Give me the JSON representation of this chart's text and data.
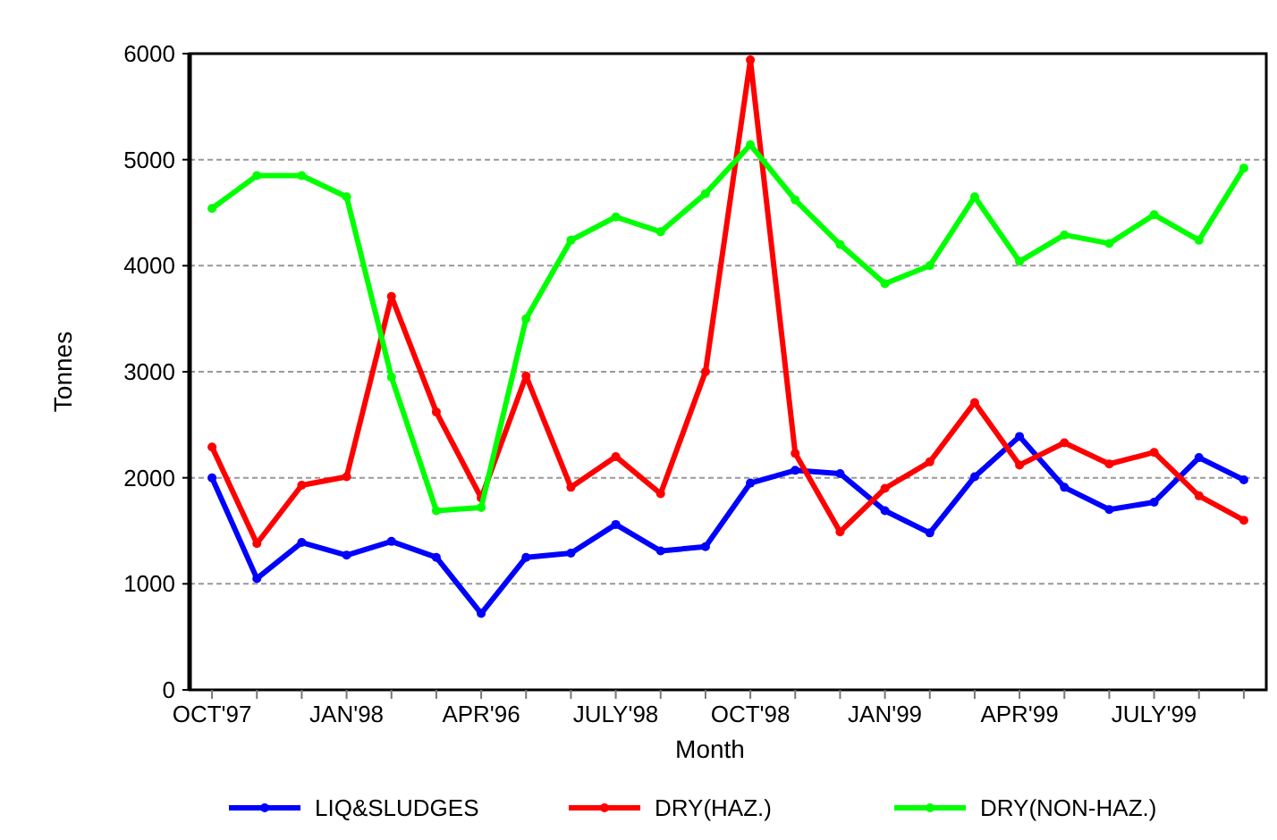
{
  "chart_data": {
    "type": "line",
    "xlabel": "Month",
    "ylabel": "Tonnes",
    "categories": [
      "OCT'97",
      null,
      null,
      "JAN'98",
      null,
      null,
      "APR'96",
      null,
      null,
      "JULY'98",
      null,
      null,
      "OCT'98",
      null,
      null,
      "JAN'99",
      null,
      null,
      "APR'99",
      null,
      null,
      "JULY'99",
      null,
      null
    ],
    "series": [
      {
        "name": "LIQ&SLUDGES",
        "color": "#0000ff",
        "values": [
          2000,
          1050,
          1390,
          1270,
          1400,
          1250,
          720,
          1250,
          1290,
          1560,
          1310,
          1350,
          1950,
          2070,
          2040,
          1690,
          1480,
          2010,
          2390,
          1910,
          1700,
          1770,
          2190,
          1980
        ]
      },
      {
        "name": "DRY(HAZ.)",
        "color": "#ff0000",
        "values": [
          2290,
          1380,
          1930,
          2010,
          3710,
          2620,
          1810,
          2960,
          1910,
          2200,
          1850,
          3000,
          5940,
          2230,
          1490,
          1900,
          2150,
          2710,
          2120,
          2330,
          2130,
          2240,
          1830,
          1600
        ]
      },
      {
        "name": "DRY(NON-HAZ.)",
        "color": "#00ff00",
        "values": [
          4540,
          4850,
          4850,
          4650,
          2950,
          1690,
          1720,
          3500,
          4240,
          4460,
          4320,
          4680,
          5140,
          4620,
          4200,
          3830,
          4000,
          4650,
          4040,
          4290,
          4210,
          4480,
          4240,
          4920
        ]
      }
    ],
    "ylim": [
      0,
      6000
    ],
    "yticks": [
      0,
      1000,
      2000,
      3000,
      4000,
      5000,
      6000
    ],
    "grid": "y",
    "legend": "bottom",
    "marker": "circle",
    "line_style": "solid"
  }
}
